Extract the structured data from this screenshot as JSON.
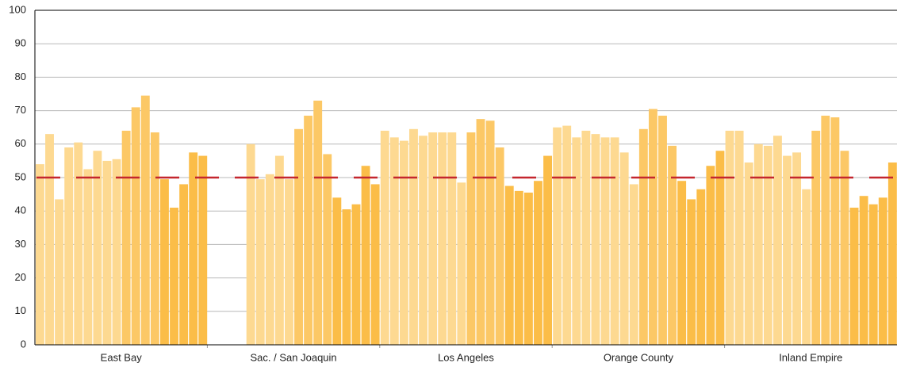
{
  "chart_data": {
    "type": "bar",
    "groups": [
      {
        "name": "East Bay",
        "values": [
          54,
          63,
          43.5,
          59,
          60.5,
          52.5,
          58,
          55,
          55.5,
          64,
          71,
          74.5,
          63.5,
          49.5,
          41,
          48,
          57.5,
          56.5
        ]
      },
      {
        "name": "Sac. / San Joaquin",
        "values": [
          null,
          null,
          null,
          null,
          60,
          49.5,
          51,
          56.5,
          49.5,
          64.5,
          68.5,
          73,
          57,
          44,
          40.5,
          42,
          53.5,
          48
        ]
      },
      {
        "name": "Los Angeles",
        "values": [
          64,
          62,
          61,
          64.5,
          62.5,
          63.5,
          63.5,
          63.5,
          48.5,
          63.5,
          67.5,
          67,
          59,
          47.5,
          46,
          45.5,
          49,
          56.5
        ]
      },
      {
        "name": "Orange County",
        "values": [
          65,
          65.5,
          62,
          64,
          63,
          62,
          62,
          57.5,
          48,
          64.5,
          70.5,
          68.5,
          59.5,
          49,
          43.5,
          46.5,
          53.5,
          58
        ]
      },
      {
        "name": "Inland Empire",
        "values": [
          64,
          64,
          54.5,
          60,
          59.5,
          62.5,
          56.5,
          57.5,
          46.5,
          64,
          68.5,
          68,
          58,
          41,
          44.5,
          42,
          44,
          54.5
        ]
      }
    ],
    "colors": [
      "#fdd991",
      "#fdd991",
      "#fdd991",
      "#fdd991",
      "#fdd991",
      "#fdd991",
      "#fdd991",
      "#fdd991",
      "#fdd991",
      "#fcc866",
      "#fcc866",
      "#fcc866",
      "#fcc866",
      "#fbbd48",
      "#fbbd48",
      "#fbbd48",
      "#fbbd48",
      "#fbbd48"
    ],
    "reference_line": 50,
    "reference_color": "#c4262e",
    "ylim": [
      0,
      100
    ],
    "yticks": [
      0,
      10,
      20,
      30,
      40,
      50,
      60,
      70,
      80,
      90,
      100
    ],
    "grid": true
  }
}
